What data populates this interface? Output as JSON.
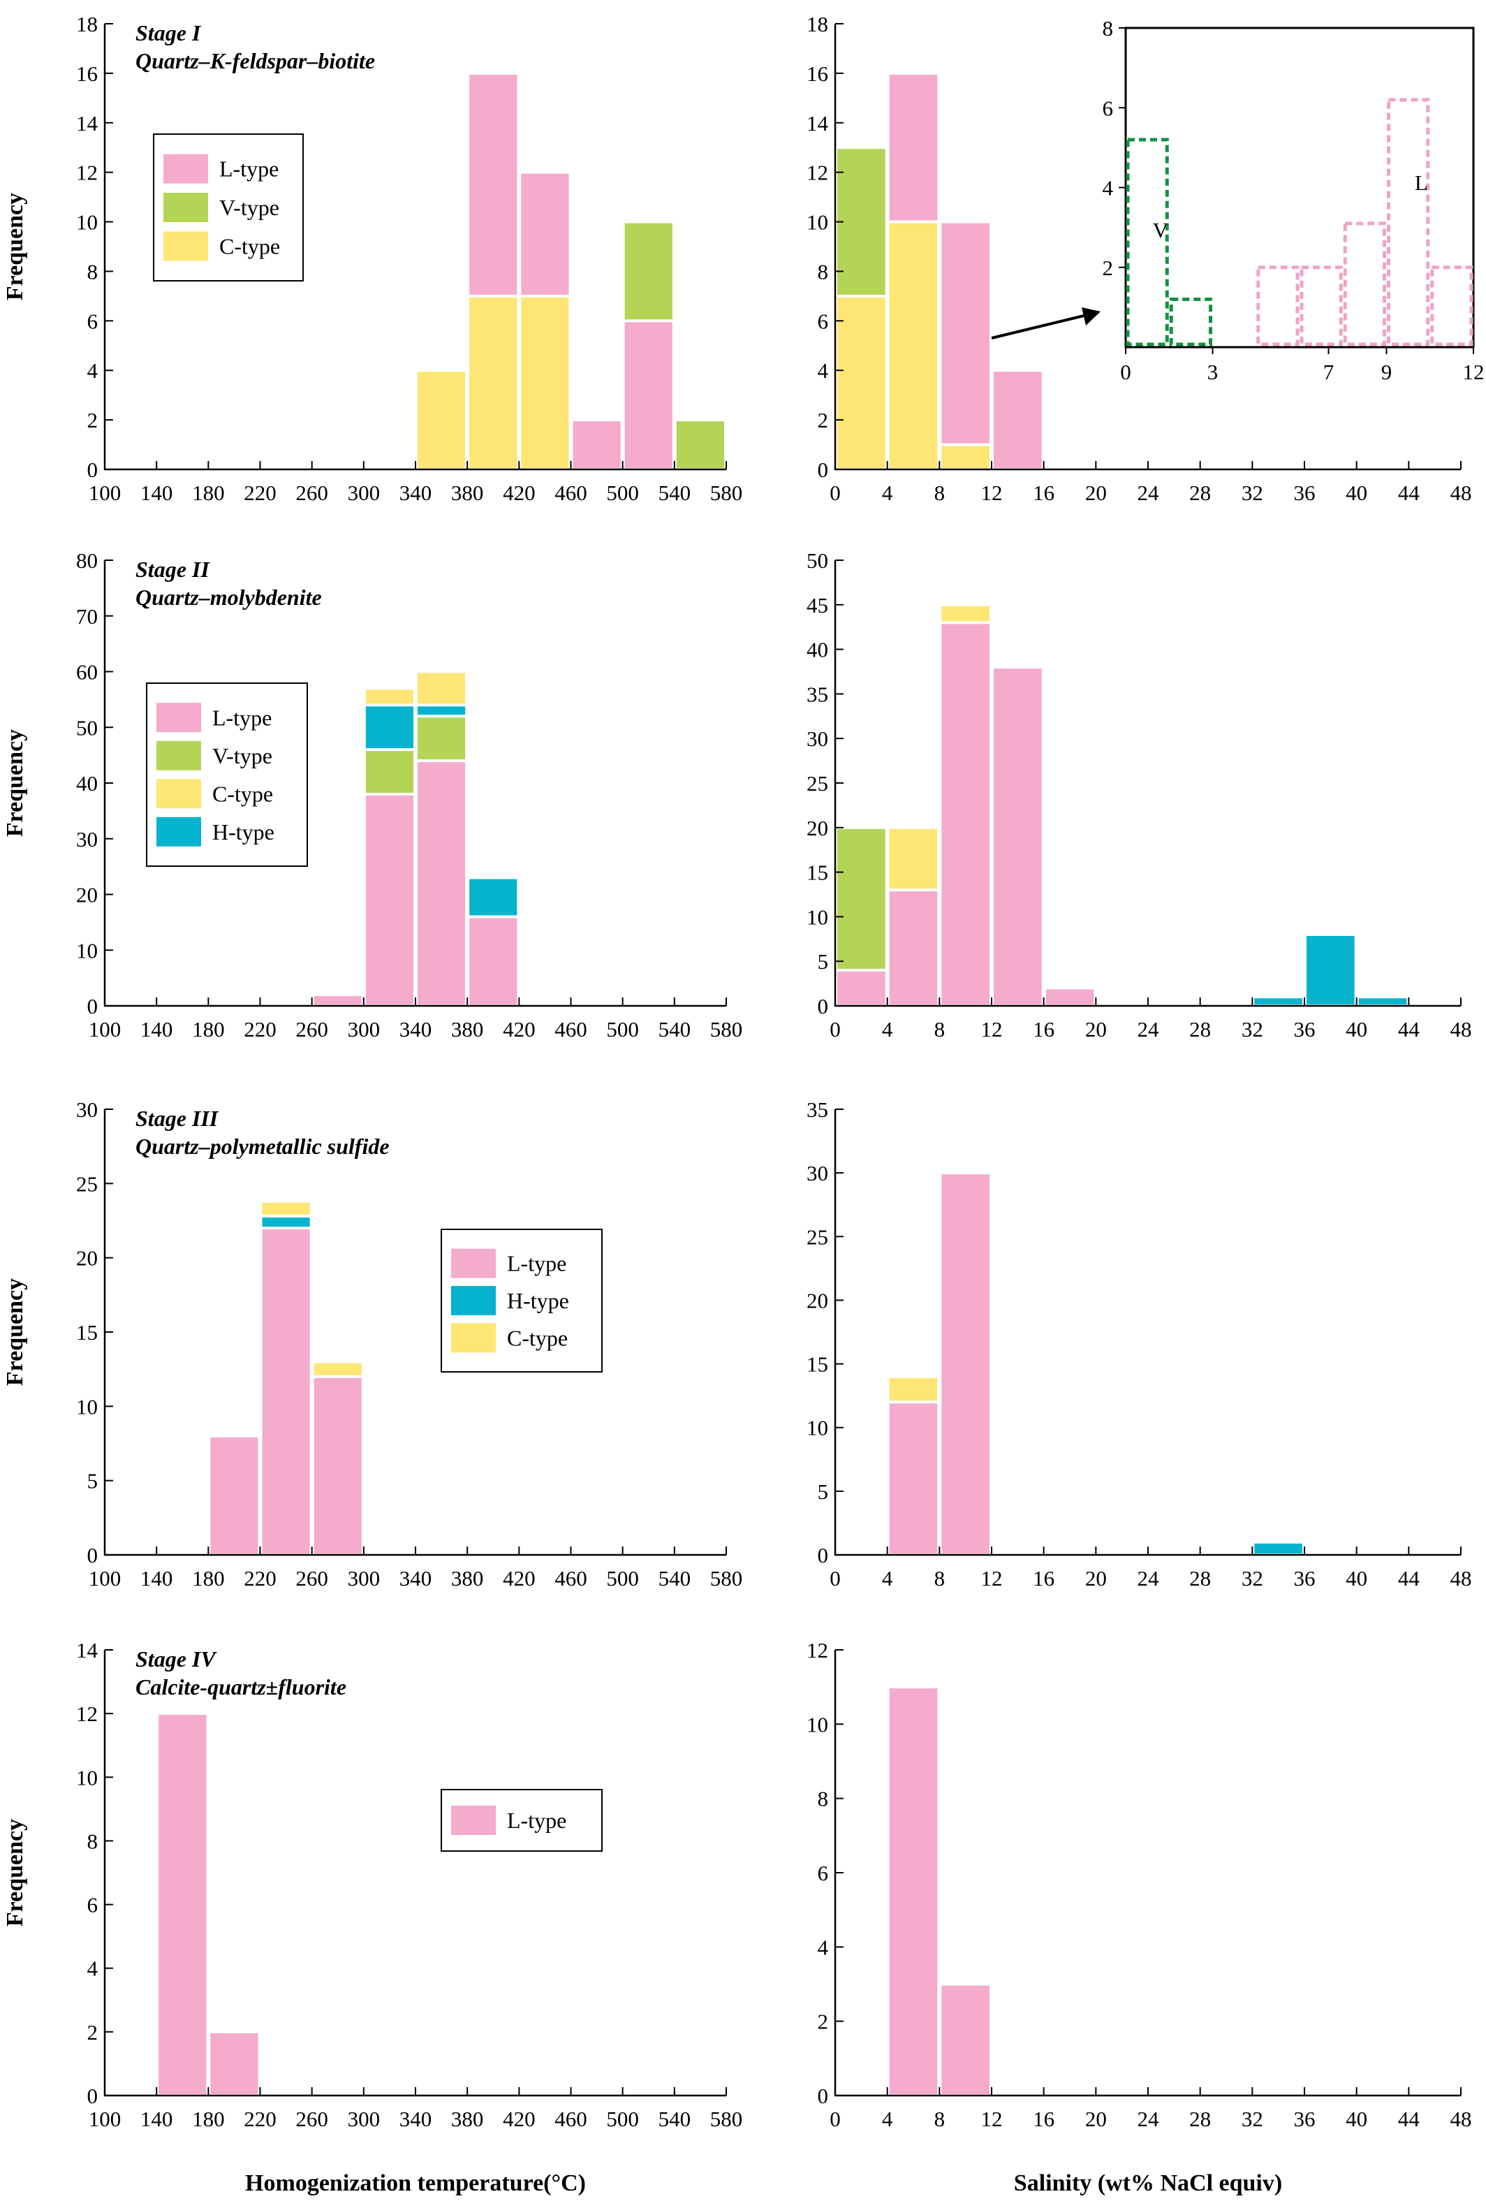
{
  "colors": {
    "L-type": "#f4abcc",
    "V-type": "#b4d455",
    "C-type": "#fde674",
    "H-type": "#05b4cc",
    "inset_V": "#139043",
    "inset_L": "#f0a3c6",
    "axis": "#000000"
  },
  "labels": {
    "x_temperature": "Homogenization temperature(°C)",
    "x_salinity": "Salinity (wt% NaCl equiv)",
    "y_frequency": "Frequency"
  },
  "chart_data": [
    {
      "id": "s1-temp",
      "type": "bar",
      "stacked": true,
      "stage": "Stage I",
      "subtitle": "Quartz–K-feldspar–biotite",
      "xlabel": "",
      "ylabel": "Frequency",
      "xlim": [
        100,
        580
      ],
      "ylim": [
        0,
        18
      ],
      "xticks": [
        100,
        140,
        180,
        220,
        260,
        300,
        340,
        380,
        420,
        460,
        500,
        540,
        580
      ],
      "yticks": [
        0,
        2,
        4,
        6,
        8,
        10,
        12,
        14,
        16,
        18
      ],
      "legend": [
        "L-type",
        "V-type",
        "C-type"
      ],
      "bins": [
        {
          "x0": 340,
          "x1": 380,
          "stack": [
            {
              "type": "C-type",
              "value": 4
            }
          ]
        },
        {
          "x0": 380,
          "x1": 420,
          "stack": [
            {
              "type": "C-type",
              "value": 7
            },
            {
              "type": "L-type",
              "value": 9
            }
          ]
        },
        {
          "x0": 420,
          "x1": 460,
          "stack": [
            {
              "type": "C-type",
              "value": 7
            },
            {
              "type": "L-type",
              "value": 5
            }
          ]
        },
        {
          "x0": 460,
          "x1": 500,
          "stack": [
            {
              "type": "L-type",
              "value": 2
            }
          ]
        },
        {
          "x0": 500,
          "x1": 540,
          "stack": [
            {
              "type": "L-type",
              "value": 6
            },
            {
              "type": "V-type",
              "value": 4
            }
          ]
        },
        {
          "x0": 540,
          "x1": 580,
          "stack": [
            {
              "type": "V-type",
              "value": 2
            }
          ]
        }
      ]
    },
    {
      "id": "s1-sal",
      "type": "bar",
      "stacked": true,
      "stage": "",
      "subtitle": "",
      "xlabel": "",
      "ylabel": "",
      "xlim": [
        0,
        48
      ],
      "ylim": [
        0,
        18
      ],
      "xticks": [
        0,
        4,
        8,
        12,
        16,
        20,
        24,
        28,
        32,
        36,
        40,
        44,
        48
      ],
      "yticks": [
        0,
        2,
        4,
        6,
        8,
        10,
        12,
        14,
        16,
        18
      ],
      "legend": [],
      "bins": [
        {
          "x0": 0,
          "x1": 4,
          "stack": [
            {
              "type": "C-type",
              "value": 7
            },
            {
              "type": "V-type",
              "value": 6
            }
          ]
        },
        {
          "x0": 4,
          "x1": 8,
          "stack": [
            {
              "type": "C-type",
              "value": 10
            },
            {
              "type": "L-type",
              "value": 6
            }
          ]
        },
        {
          "x0": 8,
          "x1": 12,
          "stack": [
            {
              "type": "C-type",
              "value": 1
            },
            {
              "type": "L-type",
              "value": 9
            }
          ]
        },
        {
          "x0": 12,
          "x1": 16,
          "stack": [
            {
              "type": "L-type",
              "value": 4
            }
          ]
        }
      ],
      "inset": {
        "xlim": [
          0,
          12
        ],
        "ylim": [
          0,
          8
        ],
        "xticks": [
          0,
          3,
          7,
          9,
          12
        ],
        "yticks": [
          2,
          4,
          6,
          8
        ],
        "annotations": [
          "V",
          "L"
        ],
        "bins": [
          {
            "x0": 0,
            "x1": 1.5,
            "value": 5.2,
            "type": "V"
          },
          {
            "x0": 1.5,
            "x1": 3,
            "value": 1.2,
            "type": "V"
          },
          {
            "x0": 4.5,
            "x1": 6,
            "value": 2,
            "type": "L"
          },
          {
            "x0": 6,
            "x1": 7.5,
            "value": 2,
            "type": "L"
          },
          {
            "x0": 7.5,
            "x1": 9,
            "value": 3.1,
            "type": "L"
          },
          {
            "x0": 9,
            "x1": 10.5,
            "value": 6.2,
            "type": "L"
          },
          {
            "x0": 10.5,
            "x1": 12,
            "value": 2,
            "type": "L"
          }
        ]
      }
    },
    {
      "id": "s2-temp",
      "type": "bar",
      "stacked": true,
      "stage": "Stage II",
      "subtitle": "Quartz–molybdenite",
      "xlabel": "",
      "ylabel": "Frequency",
      "xlim": [
        100,
        580
      ],
      "ylim": [
        0,
        80
      ],
      "xticks": [
        100,
        140,
        180,
        220,
        260,
        300,
        340,
        380,
        420,
        460,
        500,
        540,
        580
      ],
      "yticks": [
        0,
        10,
        20,
        30,
        40,
        50,
        60,
        70,
        80
      ],
      "legend": [
        "L-type",
        "V-type",
        "C-type",
        "H-type"
      ],
      "bins": [
        {
          "x0": 260,
          "x1": 300,
          "stack": [
            {
              "type": "L-type",
              "value": 2
            }
          ]
        },
        {
          "x0": 300,
          "x1": 340,
          "stack": [
            {
              "type": "L-type",
              "value": 38
            },
            {
              "type": "V-type",
              "value": 8
            },
            {
              "type": "H-type",
              "value": 8
            },
            {
              "type": "C-type",
              "value": 3
            }
          ]
        },
        {
          "x0": 340,
          "x1": 380,
          "stack": [
            {
              "type": "L-type",
              "value": 44
            },
            {
              "type": "V-type",
              "value": 8
            },
            {
              "type": "H-type",
              "value": 2
            },
            {
              "type": "C-type",
              "value": 6
            }
          ]
        },
        {
          "x0": 380,
          "x1": 420,
          "stack": [
            {
              "type": "L-type",
              "value": 16
            },
            {
              "type": "H-type",
              "value": 7
            }
          ]
        }
      ]
    },
    {
      "id": "s2-sal",
      "type": "bar",
      "stacked": true,
      "stage": "",
      "subtitle": "",
      "xlabel": "",
      "ylabel": "",
      "xlim": [
        0,
        48
      ],
      "ylim": [
        0,
        50
      ],
      "xticks": [
        0,
        4,
        8,
        12,
        16,
        20,
        24,
        28,
        32,
        36,
        40,
        44,
        48
      ],
      "yticks": [
        0,
        5,
        10,
        15,
        20,
        25,
        30,
        35,
        40,
        45,
        50
      ],
      "legend": [],
      "bins": [
        {
          "x0": 0,
          "x1": 4,
          "stack": [
            {
              "type": "L-type",
              "value": 4
            },
            {
              "type": "V-type",
              "value": 16
            }
          ]
        },
        {
          "x0": 4,
          "x1": 8,
          "stack": [
            {
              "type": "L-type",
              "value": 13
            },
            {
              "type": "C-type",
              "value": 7
            }
          ]
        },
        {
          "x0": 8,
          "x1": 12,
          "stack": [
            {
              "type": "L-type",
              "value": 43
            },
            {
              "type": "C-type",
              "value": 2
            }
          ]
        },
        {
          "x0": 12,
          "x1": 16,
          "stack": [
            {
              "type": "L-type",
              "value": 38
            }
          ]
        },
        {
          "x0": 16,
          "x1": 20,
          "stack": [
            {
              "type": "L-type",
              "value": 2
            }
          ]
        },
        {
          "x0": 32,
          "x1": 36,
          "stack": [
            {
              "type": "H-type",
              "value": 1
            }
          ]
        },
        {
          "x0": 36,
          "x1": 40,
          "stack": [
            {
              "type": "H-type",
              "value": 8
            }
          ]
        },
        {
          "x0": 40,
          "x1": 44,
          "stack": [
            {
              "type": "H-type",
              "value": 1
            }
          ]
        }
      ]
    },
    {
      "id": "s3-temp",
      "type": "bar",
      "stacked": true,
      "stage": "Stage III",
      "subtitle": "Quartz–polymetallic sulfide",
      "xlabel": "",
      "ylabel": "Frequency",
      "xlim": [
        100,
        580
      ],
      "ylim": [
        0,
        30
      ],
      "xticks": [
        100,
        140,
        180,
        220,
        260,
        300,
        340,
        380,
        420,
        460,
        500,
        540,
        580
      ],
      "yticks": [
        0,
        5,
        10,
        15,
        20,
        25,
        30
      ],
      "legend": [
        "L-type",
        "H-type",
        "C-type"
      ],
      "bins": [
        {
          "x0": 180,
          "x1": 220,
          "stack": [
            {
              "type": "L-type",
              "value": 8
            }
          ]
        },
        {
          "x0": 220,
          "x1": 260,
          "stack": [
            {
              "type": "L-type",
              "value": 22
            },
            {
              "type": "H-type",
              "value": 0.8
            },
            {
              "type": "C-type",
              "value": 1
            }
          ]
        },
        {
          "x0": 260,
          "x1": 300,
          "stack": [
            {
              "type": "L-type",
              "value": 12
            },
            {
              "type": "C-type",
              "value": 1
            }
          ]
        }
      ]
    },
    {
      "id": "s3-sal",
      "type": "bar",
      "stacked": true,
      "stage": "",
      "subtitle": "",
      "xlabel": "",
      "ylabel": "",
      "xlim": [
        0,
        48
      ],
      "ylim": [
        0,
        35
      ],
      "xticks": [
        0,
        4,
        8,
        12,
        16,
        20,
        24,
        28,
        32,
        36,
        40,
        44,
        48
      ],
      "yticks": [
        0,
        5,
        10,
        15,
        20,
        25,
        30,
        35
      ],
      "legend": [],
      "bins": [
        {
          "x0": 4,
          "x1": 8,
          "stack": [
            {
              "type": "L-type",
              "value": 12
            },
            {
              "type": "C-type",
              "value": 2
            }
          ]
        },
        {
          "x0": 8,
          "x1": 12,
          "stack": [
            {
              "type": "L-type",
              "value": 30
            }
          ]
        },
        {
          "x0": 32,
          "x1": 36,
          "stack": [
            {
              "type": "H-type",
              "value": 1
            }
          ]
        }
      ]
    },
    {
      "id": "s4-temp",
      "type": "bar",
      "stacked": true,
      "stage": "Stage IV",
      "subtitle": "Calcite-quartz±fluorite",
      "xlabel": "Homogenization temperature(°C)",
      "ylabel": "Frequency",
      "xlim": [
        100,
        580
      ],
      "ylim": [
        0,
        14
      ],
      "xticks": [
        100,
        140,
        180,
        220,
        260,
        300,
        340,
        380,
        420,
        460,
        500,
        540,
        580
      ],
      "yticks": [
        0,
        2,
        4,
        6,
        8,
        10,
        12,
        14
      ],
      "legend": [
        "L-type"
      ],
      "bins": [
        {
          "x0": 140,
          "x1": 180,
          "stack": [
            {
              "type": "L-type",
              "value": 12
            }
          ]
        },
        {
          "x0": 180,
          "x1": 220,
          "stack": [
            {
              "type": "L-type",
              "value": 2
            }
          ]
        }
      ]
    },
    {
      "id": "s4-sal",
      "type": "bar",
      "stacked": true,
      "stage": "",
      "subtitle": "",
      "xlabel": "Salinity (wt% NaCl equiv)",
      "ylabel": "",
      "xlim": [
        0,
        48
      ],
      "ylim": [
        0,
        12
      ],
      "xticks": [
        0,
        4,
        8,
        12,
        16,
        20,
        24,
        28,
        32,
        36,
        40,
        44,
        48
      ],
      "yticks": [
        0,
        2,
        4,
        6,
        8,
        10,
        12
      ],
      "legend": [],
      "bins": [
        {
          "x0": 4,
          "x1": 8,
          "stack": [
            {
              "type": "L-type",
              "value": 11
            }
          ]
        },
        {
          "x0": 8,
          "x1": 12,
          "stack": [
            {
              "type": "L-type",
              "value": 3
            }
          ]
        }
      ]
    }
  ]
}
